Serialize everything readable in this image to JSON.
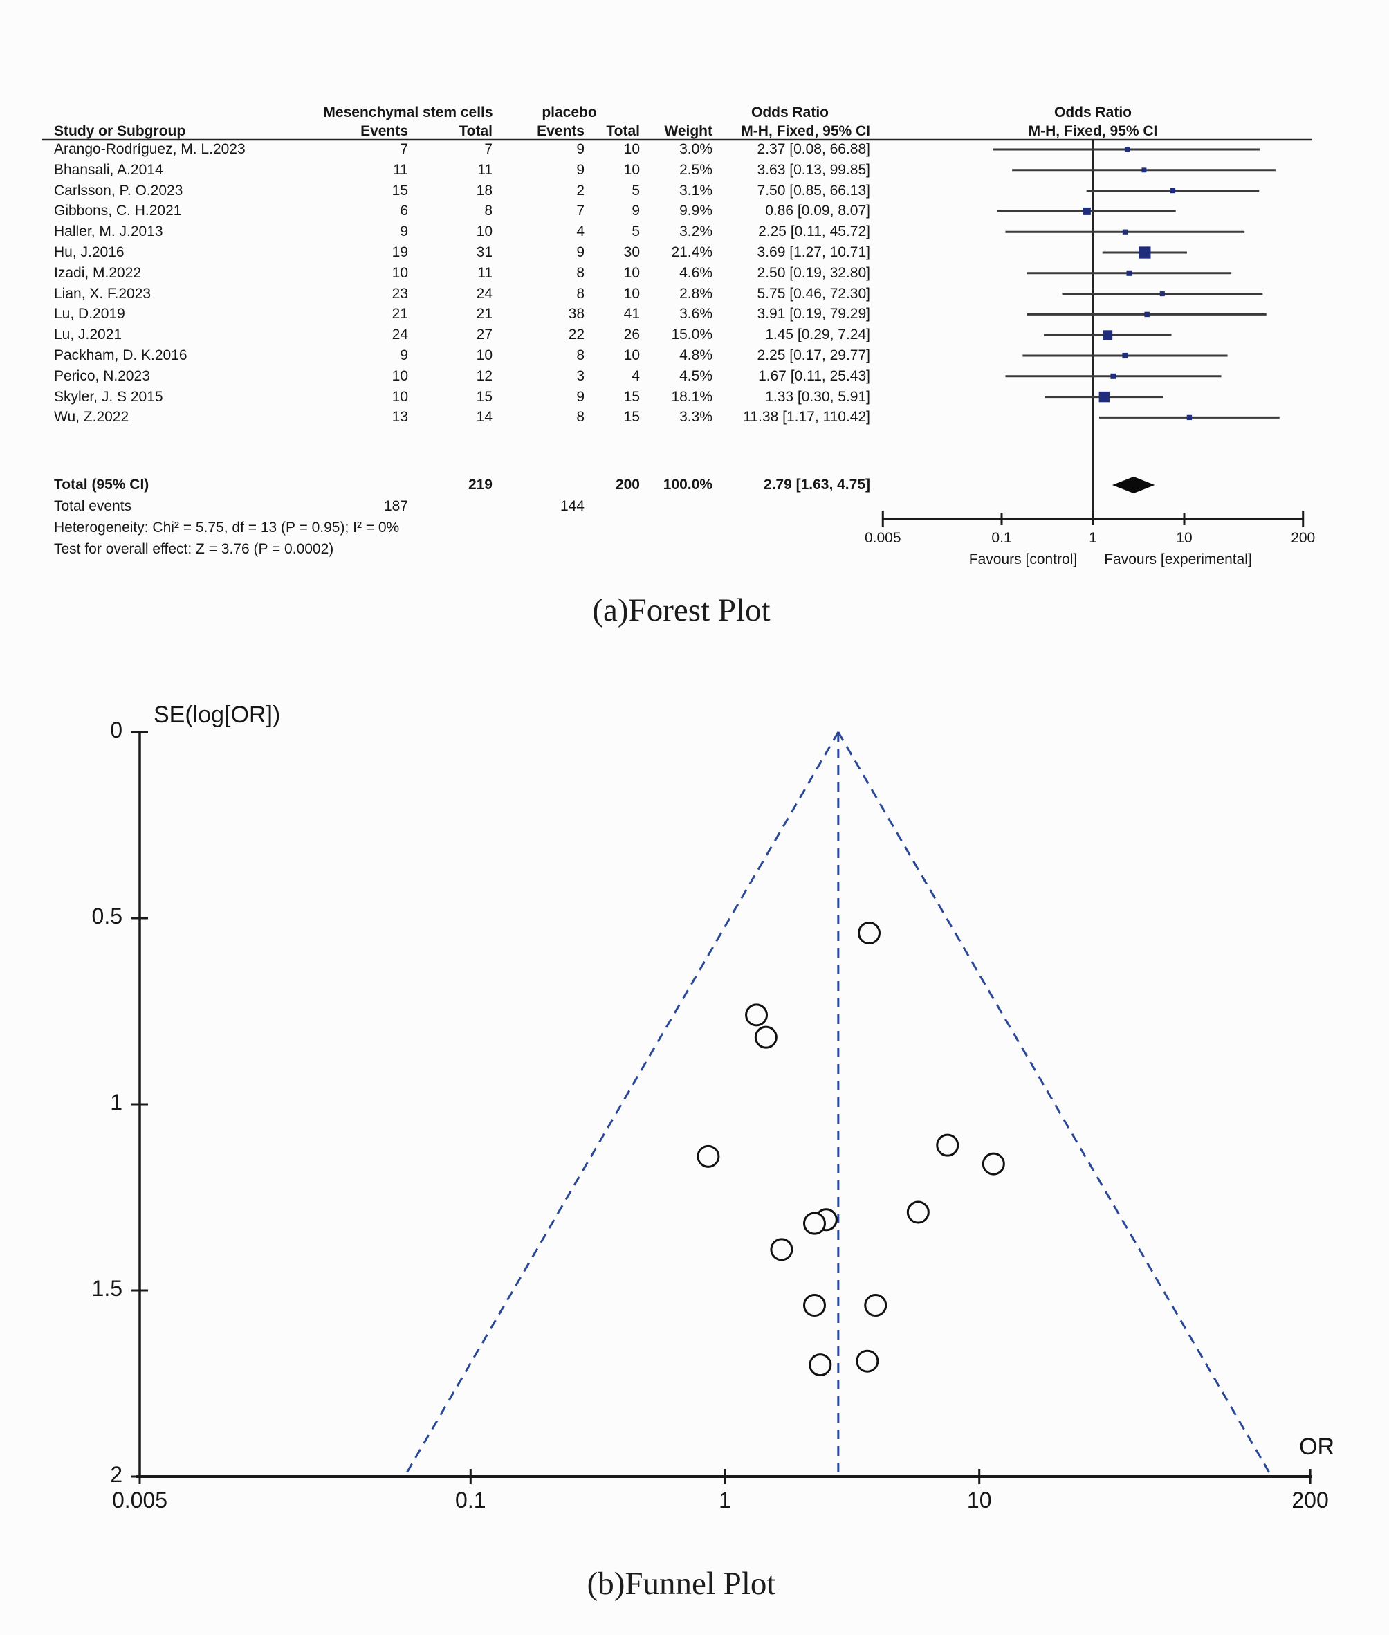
{
  "captions": {
    "a": "(a)Forest Plot",
    "b": "(b)Funnel Plot"
  },
  "chart_data": [
    {
      "type": "forest",
      "group_headers": {
        "experimental": "Mesenchymal stem cells",
        "control": "placebo",
        "or_text_col": "Odds Ratio",
        "or_plot_col": "Odds Ratio"
      },
      "columns": {
        "study": "Study or Subgroup",
        "events_exp": "Events",
        "total_exp": "Total",
        "events_ctl": "Events",
        "total_ctl": "Total",
        "weight": "Weight",
        "ci_text": "M-H, Fixed, 95% CI",
        "ci_plot": "M-H, Fixed, 95% CI"
      },
      "xscale": "log",
      "x_ticks": [
        0.005,
        0.1,
        1,
        10,
        200
      ],
      "favours_left": "Favours [control]",
      "favours_right": "Favours [experimental]",
      "studies": [
        {
          "name": "Arango-Rodríguez, M. L.2023",
          "e1": 7,
          "t1": 7,
          "e2": 9,
          "t2": 10,
          "weight": "3.0%",
          "ci_label": "2.37 [0.08, 66.88]",
          "or": 2.37,
          "lo": 0.08,
          "hi": 66.88
        },
        {
          "name": "Bhansali, A.2014",
          "e1": 11,
          "t1": 11,
          "e2": 9,
          "t2": 10,
          "weight": "2.5%",
          "ci_label": "3.63 [0.13, 99.85]",
          "or": 3.63,
          "lo": 0.13,
          "hi": 99.85
        },
        {
          "name": "Carlsson, P. O.2023",
          "e1": 15,
          "t1": 18,
          "e2": 2,
          "t2": 5,
          "weight": "3.1%",
          "ci_label": "7.50 [0.85, 66.13]",
          "or": 7.5,
          "lo": 0.85,
          "hi": 66.13
        },
        {
          "name": "Gibbons, C. H.2021",
          "e1": 6,
          "t1": 8,
          "e2": 7,
          "t2": 9,
          "weight": "9.9%",
          "ci_label": "0.86 [0.09, 8.07]",
          "or": 0.86,
          "lo": 0.09,
          "hi": 8.07
        },
        {
          "name": "Haller, M. J.2013",
          "e1": 9,
          "t1": 10,
          "e2": 4,
          "t2": 5,
          "weight": "3.2%",
          "ci_label": "2.25 [0.11, 45.72]",
          "or": 2.25,
          "lo": 0.11,
          "hi": 45.72
        },
        {
          "name": "Hu, J.2016",
          "e1": 19,
          "t1": 31,
          "e2": 9,
          "t2": 30,
          "weight": "21.4%",
          "ci_label": "3.69 [1.27, 10.71]",
          "or": 3.69,
          "lo": 1.27,
          "hi": 10.71
        },
        {
          "name": "Izadi, M.2022",
          "e1": 10,
          "t1": 11,
          "e2": 8,
          "t2": 10,
          "weight": "4.6%",
          "ci_label": "2.50 [0.19, 32.80]",
          "or": 2.5,
          "lo": 0.19,
          "hi": 32.8
        },
        {
          "name": "Lian, X. F.2023",
          "e1": 23,
          "t1": 24,
          "e2": 8,
          "t2": 10,
          "weight": "2.8%",
          "ci_label": "5.75 [0.46, 72.30]",
          "or": 5.75,
          "lo": 0.46,
          "hi": 72.3
        },
        {
          "name": "Lu, D.2019",
          "e1": 21,
          "t1": 21,
          "e2": 38,
          "t2": 41,
          "weight": "3.6%",
          "ci_label": "3.91 [0.19, 79.29]",
          "or": 3.91,
          "lo": 0.19,
          "hi": 79.29
        },
        {
          "name": "Lu, J.2021",
          "e1": 24,
          "t1": 27,
          "e2": 22,
          "t2": 26,
          "weight": "15.0%",
          "ci_label": "1.45 [0.29, 7.24]",
          "or": 1.45,
          "lo": 0.29,
          "hi": 7.24
        },
        {
          "name": "Packham, D. K.2016",
          "e1": 9,
          "t1": 10,
          "e2": 8,
          "t2": 10,
          "weight": "4.8%",
          "ci_label": "2.25 [0.17, 29.77]",
          "or": 2.25,
          "lo": 0.17,
          "hi": 29.77
        },
        {
          "name": "Perico, N.2023",
          "e1": 10,
          "t1": 12,
          "e2": 3,
          "t2": 4,
          "weight": "4.5%",
          "ci_label": "1.67 [0.11, 25.43]",
          "or": 1.67,
          "lo": 0.11,
          "hi": 25.43
        },
        {
          "name": "Skyler, J. S 2015",
          "e1": 10,
          "t1": 15,
          "e2": 9,
          "t2": 15,
          "weight": "18.1%",
          "ci_label": "1.33 [0.30, 5.91]",
          "or": 1.33,
          "lo": 0.3,
          "hi": 5.91
        },
        {
          "name": "Wu, Z.2022",
          "e1": 13,
          "t1": 14,
          "e2": 8,
          "t2": 15,
          "weight": "3.3%",
          "ci_label": "11.38 [1.17, 110.42]",
          "or": 11.38,
          "lo": 1.17,
          "hi": 110.42
        }
      ],
      "total": {
        "label": "Total (95% CI)",
        "t1": 219,
        "t2": 200,
        "weight": "100.0%",
        "ci_label": "2.79 [1.63, 4.75]",
        "or": 2.79,
        "lo": 1.63,
        "hi": 4.75
      },
      "total_events": {
        "label": "Total events",
        "e1": 187,
        "e2": 144
      },
      "heterogeneity": "Heterogeneity: Chi² = 5.75, df = 13 (P = 0.95); I² = 0%",
      "overall_effect": "Test for overall effect: Z = 3.76 (P = 0.0002)"
    },
    {
      "type": "scatter",
      "ylabel": "SE(log[OR])",
      "xlabel": "OR",
      "xscale": "log",
      "x_ticks": [
        0.005,
        0.1,
        1,
        10,
        200
      ],
      "y_ticks": [
        0,
        0.5,
        1,
        1.5,
        2
      ],
      "ylim": [
        0,
        2
      ],
      "y_inverted": true,
      "center_line_or": 2.79,
      "funnel_bounds": {
        "apex_or": 2.79,
        "se_max": 2,
        "left_or": 0.055,
        "right_or": 141
      },
      "points": [
        {
          "study": "Arango-Rodríguez, M. L.2023",
          "or": 2.37,
          "se": 1.7
        },
        {
          "study": "Bhansali, A.2014",
          "or": 3.63,
          "se": 1.69
        },
        {
          "study": "Carlsson, P. O.2023",
          "or": 7.5,
          "se": 1.11
        },
        {
          "study": "Gibbons, C. H.2021",
          "or": 0.86,
          "se": 1.14
        },
        {
          "study": "Haller, M. J.2013",
          "or": 2.25,
          "se": 1.54
        },
        {
          "study": "Hu, J.2016",
          "or": 3.69,
          "se": 0.54
        },
        {
          "study": "Izadi, M.2022",
          "or": 2.5,
          "se": 1.31
        },
        {
          "name": "Lian, X. F.2023",
          "study": "Lian, X. F.2023",
          "or": 5.75,
          "se": 1.29
        },
        {
          "study": "Lu, D.2019",
          "or": 3.91,
          "se": 1.54
        },
        {
          "study": "Lu, J.2021",
          "or": 1.45,
          "se": 0.82
        },
        {
          "study": "Packham, D. K.2016",
          "or": 2.25,
          "se": 1.32
        },
        {
          "study": "Perico, N.2023",
          "or": 1.67,
          "se": 1.39
        },
        {
          "study": "Skyler, J. S 2015",
          "or": 1.33,
          "se": 0.76
        },
        {
          "study": "Wu, Z.2022",
          "or": 11.38,
          "se": 1.16
        }
      ]
    }
  ],
  "colors": {
    "marker_square": "#1f2d7b",
    "diamond": "#0a0a0a",
    "ci_line": "#3a3a3a",
    "dashed_line": "#2a4896",
    "axis": "#1a1a1a"
  }
}
